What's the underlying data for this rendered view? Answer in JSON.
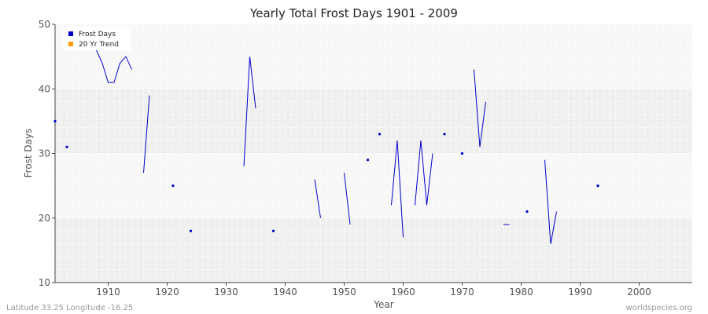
{
  "chart_data": {
    "type": "line",
    "title": "Yearly Total Frost Days 1901 - 2009",
    "xlabel": "Year",
    "ylabel": "Frost Days",
    "xlim": [
      1901,
      2009
    ],
    "ylim": [
      10,
      50
    ],
    "x_ticks": [
      1910,
      1920,
      1930,
      1940,
      1950,
      1960,
      1970,
      1980,
      1990,
      2000
    ],
    "y_ticks": [
      10,
      20,
      30,
      40,
      50
    ],
    "grid": true,
    "legend_position": "top-left",
    "legend": [
      {
        "label": "Frost Days",
        "color": "#0000cc"
      },
      {
        "label": "20 Yr Trend",
        "color": "#ff9900"
      }
    ],
    "series": [
      {
        "name": "Frost Days",
        "color": "#0000cc",
        "points": [
          [
            1901,
            35
          ],
          [
            1903,
            31
          ],
          [
            1908,
            46
          ],
          [
            1909,
            44
          ],
          [
            1910,
            41
          ],
          [
            1911,
            41
          ],
          [
            1912,
            44
          ],
          [
            1913,
            45
          ],
          [
            1914,
            43
          ],
          [
            1916,
            27
          ],
          [
            1917,
            39
          ],
          [
            1921,
            25
          ],
          [
            1924,
            18
          ],
          [
            1933,
            28
          ],
          [
            1934,
            45
          ],
          [
            1935,
            37
          ],
          [
            1938,
            18
          ],
          [
            1945,
            26
          ],
          [
            1946,
            20
          ],
          [
            1950,
            27
          ],
          [
            1951,
            19
          ],
          [
            1954,
            29
          ],
          [
            1956,
            33
          ],
          [
            1958,
            22
          ],
          [
            1959,
            32
          ],
          [
            1960,
            17
          ],
          [
            1962,
            22
          ],
          [
            1963,
            32
          ],
          [
            1964,
            22
          ],
          [
            1965,
            30
          ],
          [
            1967,
            33
          ],
          [
            1970,
            30
          ],
          [
            1972,
            43
          ],
          [
            1973,
            31
          ],
          [
            1974,
            38
          ],
          [
            1977,
            19
          ],
          [
            1978,
            19
          ],
          [
            1981,
            21
          ],
          [
            1984,
            29
          ],
          [
            1985,
            16
          ],
          [
            1986,
            21
          ],
          [
            1993,
            25
          ]
        ],
        "segments": [
          [
            [
              1908,
              46
            ],
            [
              1909,
              44
            ],
            [
              1910,
              41
            ],
            [
              1911,
              41
            ],
            [
              1912,
              44
            ],
            [
              1913,
              45
            ],
            [
              1914,
              43
            ]
          ],
          [
            [
              1916,
              27
            ],
            [
              1917,
              39
            ]
          ],
          [
            [
              1933,
              28
            ],
            [
              1934,
              45
            ],
            [
              1935,
              37
            ]
          ],
          [
            [
              1945,
              26
            ],
            [
              1946,
              20
            ]
          ],
          [
            [
              1950,
              27
            ],
            [
              1951,
              19
            ]
          ],
          [
            [
              1958,
              22
            ],
            [
              1959,
              32
            ],
            [
              1960,
              17
            ]
          ],
          [
            [
              1962,
              22
            ],
            [
              1963,
              32
            ],
            [
              1964,
              22
            ],
            [
              1965,
              30
            ]
          ],
          [
            [
              1972,
              43
            ],
            [
              1973,
              31
            ],
            [
              1974,
              38
            ]
          ],
          [
            [
              1977,
              19
            ],
            [
              1978,
              19
            ]
          ],
          [
            [
              1984,
              29
            ],
            [
              1985,
              16
            ],
            [
              1986,
              21
            ]
          ]
        ],
        "isolated": [
          [
            1901,
            35
          ],
          [
            1903,
            31
          ],
          [
            1921,
            25
          ],
          [
            1924,
            18
          ],
          [
            1938,
            18
          ],
          [
            1954,
            29
          ],
          [
            1956,
            33
          ],
          [
            1967,
            33
          ],
          [
            1970,
            30
          ],
          [
            1981,
            21
          ],
          [
            1993,
            25
          ]
        ]
      }
    ]
  },
  "footer": {
    "left": "Latitude 33.25 Longitude -16.25",
    "right": "worldspecies.org"
  },
  "colors": {
    "band_light": "#f7f7f7",
    "band_dark": "#efefef",
    "axis": "#444444",
    "series": "#0000cc",
    "trend": "#ff9900"
  }
}
